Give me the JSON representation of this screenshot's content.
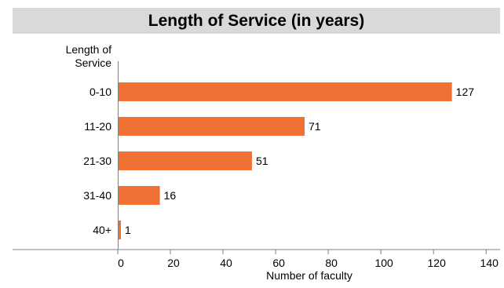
{
  "chart_data": {
    "type": "bar",
    "orientation": "horizontal",
    "title": "Length of Service (in years)",
    "ylabel_lines": [
      "Length of",
      "Service"
    ],
    "xlabel": "Number of faculty",
    "categories": [
      "0-10",
      "11-20",
      "21-30",
      "31-40",
      "40+"
    ],
    "values": [
      127,
      71,
      51,
      16,
      1
    ],
    "data_labels": [
      "127",
      "71",
      "51",
      "16",
      "1"
    ],
    "xlim": [
      0,
      145
    ],
    "xticks": [
      0,
      20,
      40,
      60,
      80,
      100,
      120,
      140
    ],
    "xtick_labels": [
      "0",
      "20",
      "40",
      "60",
      "80",
      "100",
      "120",
      "140"
    ],
    "grid": false,
    "legend": "none",
    "bar_color": "#f07033",
    "title_background": "#d9d9d9"
  }
}
